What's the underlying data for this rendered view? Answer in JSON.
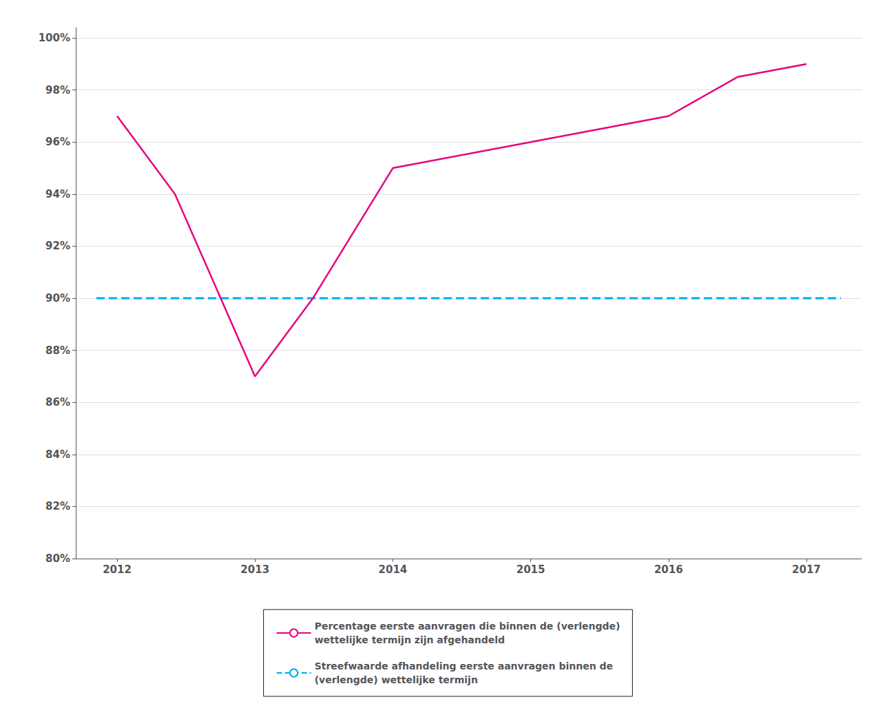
{
  "chart_data": {
    "type": "line",
    "series": [
      {
        "name": "Percentage eerste aanvragen die binnen de (verlengde)\nwettelijke termijn zijn afgehandeld",
        "color": "#e8007d",
        "line_style": "solid",
        "x": [
          2012,
          2012.42,
          2013,
          2013.42,
          2014,
          2015,
          2016,
          2016.5,
          2017
        ],
        "values": [
          0.97,
          0.94,
          0.87,
          0.9,
          0.95,
          0.96,
          0.97,
          0.985,
          0.99
        ]
      },
      {
        "name": "Streefwaarde afhandeling eerste aanvragen binnen de\n(verlengde) wettelijke termijn",
        "color": "#00aaee",
        "line_style": "dashed",
        "x": [
          2011.85,
          2017.25
        ],
        "values": [
          0.9,
          0.9
        ]
      }
    ],
    "xlim": [
      2011.7,
      2017.4
    ],
    "xticks": [
      2012,
      2013,
      2014,
      2015,
      2016,
      2017
    ],
    "ylim": [
      0.8,
      1.004
    ],
    "yticks": [
      {
        "value": 0.8,
        "label": "80%"
      },
      {
        "value": 0.82,
        "label": "82%"
      },
      {
        "value": 0.84,
        "label": "84%"
      },
      {
        "value": 0.86,
        "label": "86%"
      },
      {
        "value": 0.88,
        "label": "88%"
      },
      {
        "value": 0.9,
        "label": "90%"
      },
      {
        "value": 0.92,
        "label": "92%"
      },
      {
        "value": 0.94,
        "label": "94%"
      },
      {
        "value": 0.96,
        "label": "96%"
      },
      {
        "value": 0.98,
        "label": "98%"
      },
      {
        "value": 1.0,
        "label": "100%"
      }
    ],
    "grid": true,
    "legend": "bottom"
  }
}
